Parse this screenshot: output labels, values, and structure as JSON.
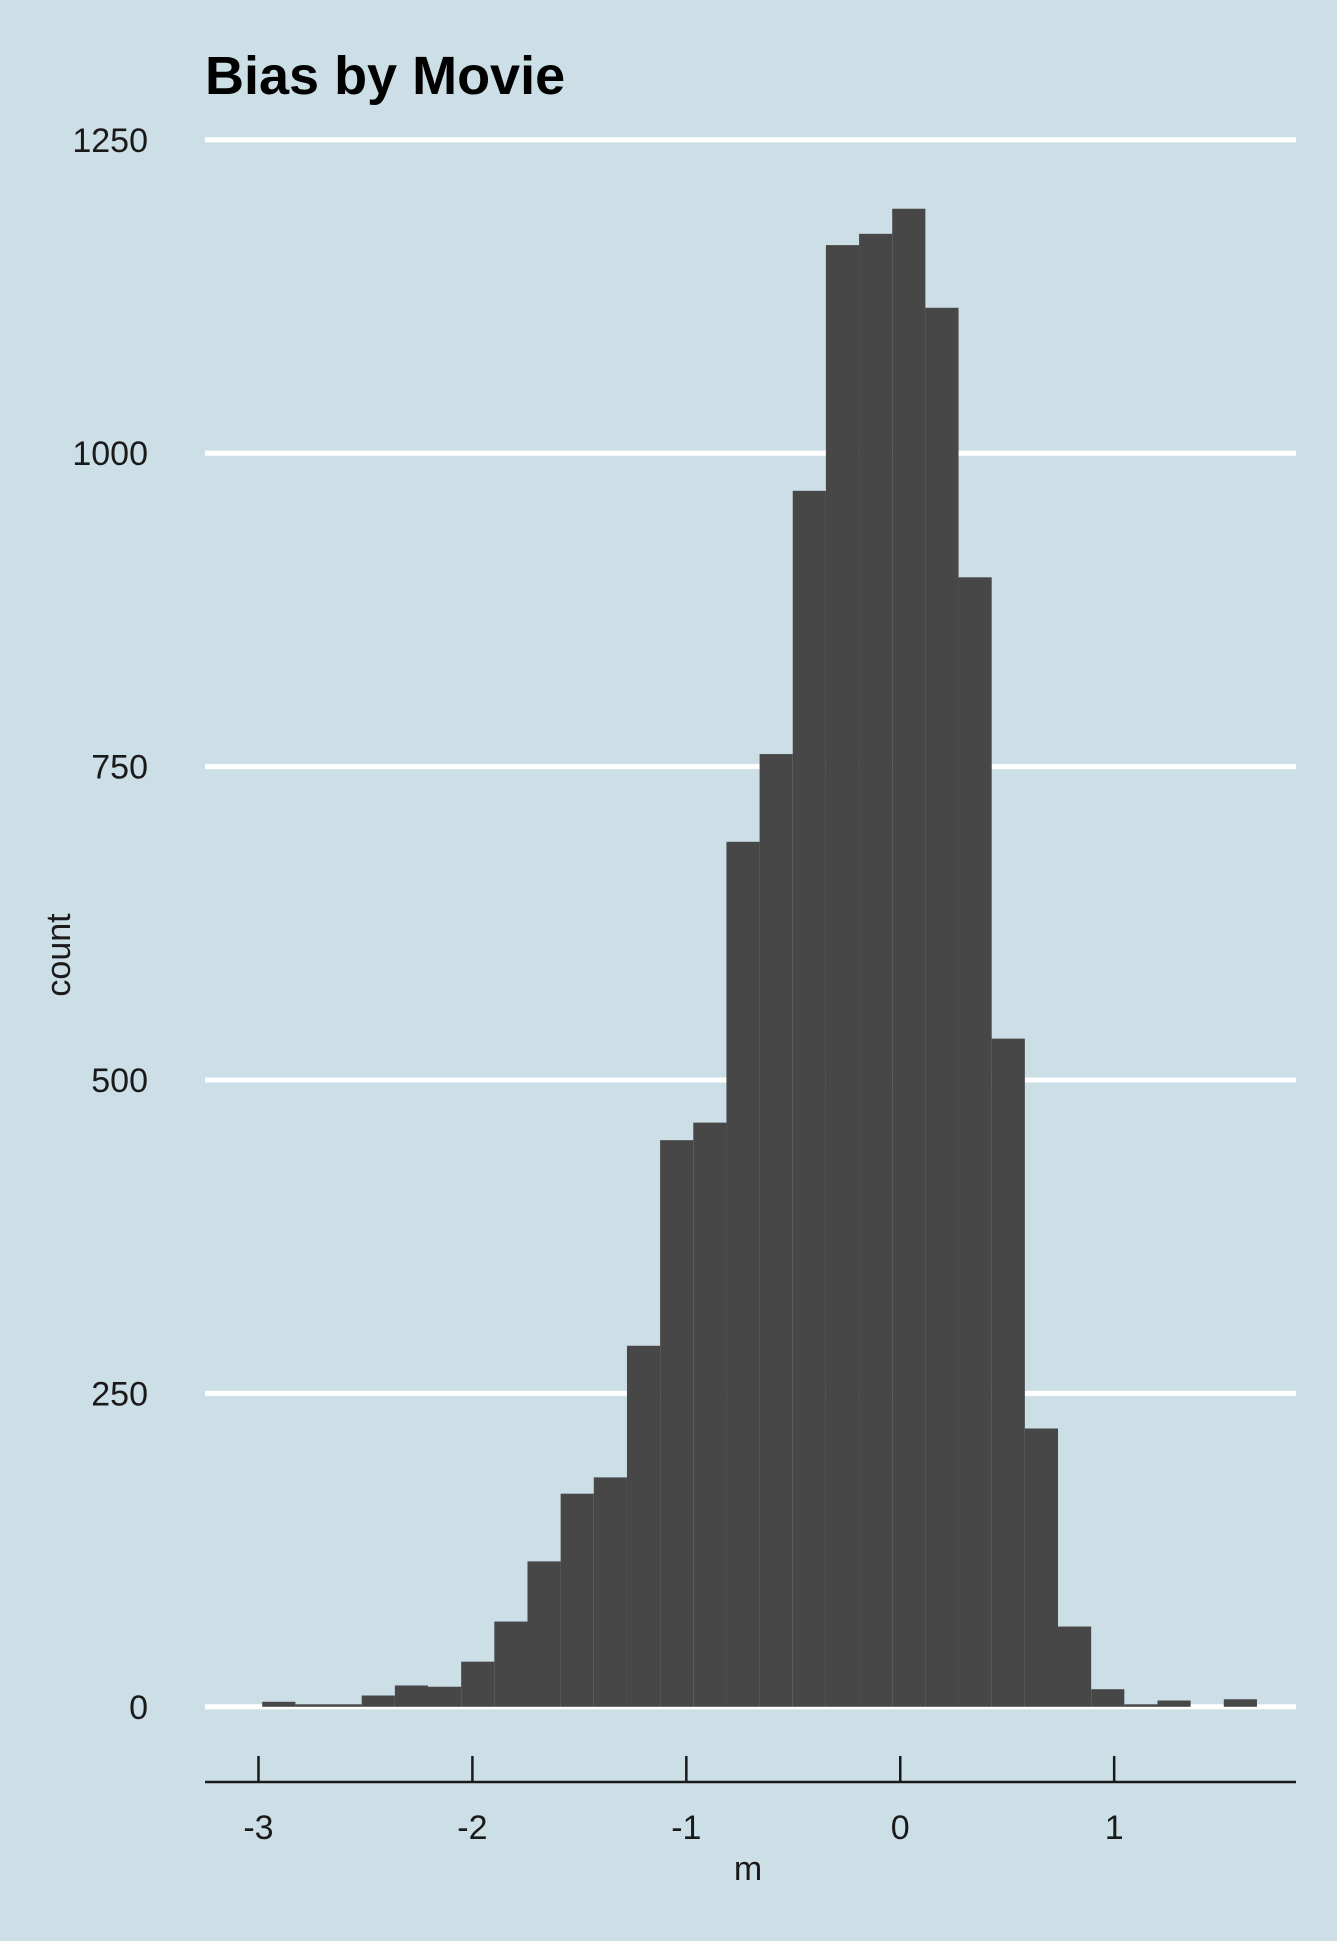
{
  "chart_data": {
    "type": "bar",
    "title": "Bias by Movie",
    "xlabel": "m",
    "ylabel": "count",
    "xlim": [
      -3.25,
      1.85
    ],
    "ylim": [
      -60,
      1265
    ],
    "x_ticks": [
      -3,
      -2,
      -1,
      0,
      1
    ],
    "y_ticks": [
      0,
      250,
      500,
      750,
      1000,
      1250
    ],
    "grid": "horizontal",
    "bar_color": "#474747",
    "gridline_color": "#ffffff",
    "background_color": "#cddfe6",
    "bin_width": 0.155,
    "bin_centers": [
      -2.905,
      -2.75,
      -2.595,
      -2.44,
      -2.285,
      -2.13,
      -1.975,
      -1.82,
      -1.665,
      -1.51,
      -1.355,
      -1.2,
      -1.045,
      -0.89,
      -0.735,
      -0.58,
      -0.425,
      -0.27,
      -0.115,
      0.04,
      0.195,
      0.35,
      0.505,
      0.66,
      0.815,
      0.97,
      1.125,
      1.28,
      1.435,
      1.59
    ],
    "values": [
      4,
      2,
      2,
      9,
      17,
      16,
      36,
      68,
      116,
      170,
      183,
      288,
      452,
      466,
      690,
      760,
      970,
      1166,
      1175,
      1195,
      1116,
      901,
      533,
      222,
      64,
      14,
      2,
      5,
      0,
      6
    ]
  }
}
